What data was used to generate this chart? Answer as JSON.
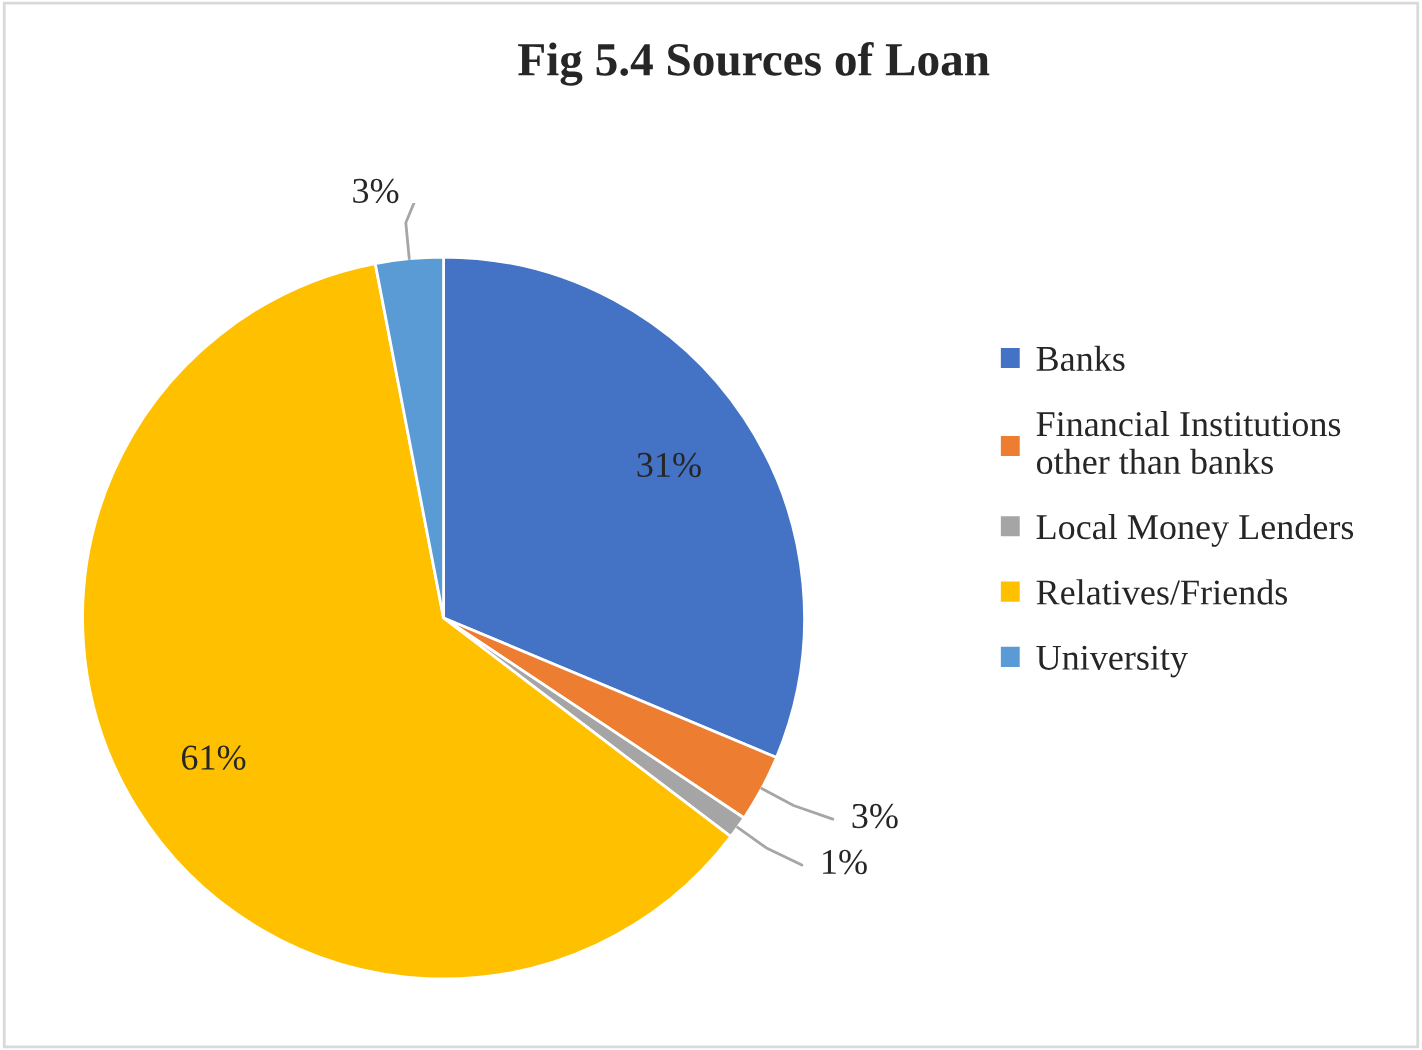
{
  "chart_data": {
    "type": "pie",
    "title": "Fig 5.4 Sources of Loan",
    "categories": [
      "Banks",
      "Financial Institutions\nother than banks",
      "Local Money Lenders",
      "Relatives/Friends",
      "University"
    ],
    "values": [
      31,
      3,
      1,
      61,
      3
    ],
    "colors": [
      "#4472c4",
      "#ed7d31",
      "#a5a5a5",
      "#ffc000",
      "#5b9bd5"
    ],
    "value_labels": [
      "31%",
      "3%",
      "1%",
      "61%",
      "3%"
    ],
    "legend": "right"
  }
}
